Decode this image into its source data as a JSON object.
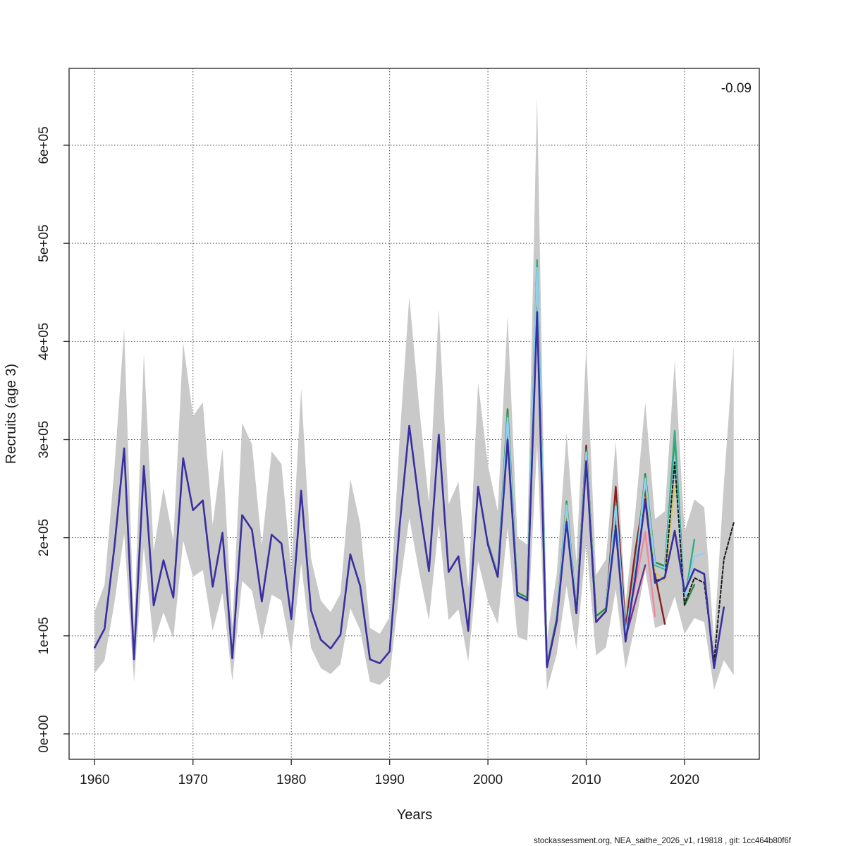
{
  "annotation": {
    "mohn_rho": "-0.09"
  },
  "footer": {
    "text": "stockassessment.org, NEA_saithe_2026_v1, r19818 , git: 1cc464b80f6f"
  },
  "colors": {
    "band": "#c9c9c9",
    "frame": "#333333",
    "grid": "#4d4d4d",
    "text": "#1a1a1a"
  },
  "chart_data": {
    "type": "line",
    "title": "",
    "xlabel": "Years",
    "ylabel": "Recruits (age 3)",
    "x_ticks": [
      1960,
      1970,
      1980,
      1990,
      2000,
      2010,
      2020
    ],
    "y_ticks": [
      {
        "value": 0,
        "label": "0e+00"
      },
      {
        "value": 100,
        "label": "1e+05"
      },
      {
        "value": 200,
        "label": "2e+05"
      },
      {
        "value": 300,
        "label": "3e+05"
      },
      {
        "value": 400,
        "label": "4e+05"
      },
      {
        "value": 500,
        "label": "5e+05"
      },
      {
        "value": 600,
        "label": "6e+05"
      }
    ],
    "y_unit": "thousands (value 100 = 1e+05 recruits)",
    "xlim": [
      1957.4,
      2027.6
    ],
    "ylim": [
      -26,
      678
    ],
    "grid": true,
    "legend": "none",
    "band": {
      "name": "confidence-band",
      "start_year": 1960,
      "upper": [
        125,
        152,
        270,
        413,
        108,
        388,
        186,
        251,
        197,
        399,
        324,
        338,
        213,
        291,
        109,
        317,
        295,
        192,
        288,
        275,
        166,
        352,
        179,
        136,
        124,
        143,
        260,
        214,
        108,
        102,
        119,
        298,
        446,
        334,
        236,
        433,
        234,
        257,
        149,
        358,
        274,
        227,
        426,
        200,
        193,
        650,
        97,
        163,
        307,
        175,
        395,
        162,
        178,
        298,
        133,
        227,
        338,
        219,
        227,
        380,
        206,
        239,
        231,
        95,
        255,
        395
      ],
      "lower": [
        62,
        75,
        133,
        204,
        53,
        191,
        92,
        124,
        97,
        197,
        160,
        167,
        105,
        144,
        54,
        156,
        146,
        95,
        142,
        136,
        82,
        174,
        88,
        67,
        61,
        71,
        128,
        106,
        53,
        50,
        59,
        147,
        220,
        165,
        116,
        214,
        116,
        127,
        74,
        176,
        135,
        112,
        210,
        99,
        95,
        295,
        45,
        81,
        151,
        86,
        195,
        80,
        88,
        147,
        66,
        112,
        167,
        108,
        112,
        140,
        102,
        118,
        114,
        45,
        75,
        60
      ]
    },
    "series": [
      {
        "name": "peel-2016-purple",
        "color": "#7B2D8B",
        "dash": "none",
        "width": 2.4,
        "start_year": 2000,
        "values": [
          193,
          160,
          305,
          141,
          136,
          440,
          68,
          115,
          220,
          123,
          281,
          114,
          125,
          218,
          98,
          135,
          172
        ]
      },
      {
        "name": "peel-2015-magenta",
        "color": "#C12A8A",
        "dash": "none",
        "width": 2.4,
        "start_year": 2000,
        "values": [
          193,
          160,
          308,
          141,
          136,
          445,
          68,
          115,
          222,
          123,
          283,
          114,
          125,
          241,
          104,
          155
        ]
      },
      {
        "name": "peel-2017-pink",
        "color": "#F2879B",
        "dash": "none",
        "width": 2.4,
        "start_year": 2000,
        "values": [
          193,
          160,
          312,
          141,
          136,
          450,
          68,
          115,
          224,
          123,
          286,
          114,
          125,
          238,
          108,
          152,
          206,
          120
        ]
      },
      {
        "name": "peel-2018-darkred",
        "color": "#8B1E1E",
        "dash": "none",
        "width": 2.4,
        "start_year": 2000,
        "values": [
          193,
          160,
          315,
          141,
          136,
          455,
          68,
          115,
          226,
          123,
          294,
          114,
          125,
          252,
          108,
          187,
          250,
          162,
          112
        ]
      },
      {
        "name": "peel-2019-yellow",
        "color": "#D6C75E",
        "dash": "none",
        "width": 2.4,
        "start_year": 2000,
        "values": [
          194,
          160,
          320,
          142,
          136,
          470,
          69,
          116,
          230,
          124,
          288,
          116,
          126,
          228,
          99,
          170,
          258,
          165,
          156,
          253
        ]
      },
      {
        "name": "peel-2020-green",
        "color": "#2E8B3C",
        "dash": "none",
        "width": 2.4,
        "start_year": 2000,
        "values": [
          195,
          162,
          331,
          144,
          139,
          479,
          70,
          118,
          237,
          126,
          290,
          120,
          128,
          230,
          100,
          168,
          265,
          175,
          171,
          303,
          131,
          152
        ]
      },
      {
        "name": "peel-2021-teal",
        "color": "#2FAE84",
        "dash": "none",
        "width": 2.4,
        "start_year": 2000,
        "values": [
          194,
          161,
          325,
          142,
          137,
          483,
          69,
          116,
          235,
          124,
          285,
          115,
          126,
          235,
          102,
          165,
          262,
          172,
          168,
          309,
          135,
          198
        ]
      },
      {
        "name": "peel-2022-skyblue",
        "color": "#8ED0F2",
        "dash": "none",
        "width": 2.4,
        "start_year": 2000,
        "values": [
          194,
          161,
          322,
          142,
          137,
          475,
          69,
          116,
          233,
          124,
          287,
          115,
          126,
          232,
          101,
          166,
          260,
          173,
          169,
          280,
          138,
          181,
          184
        ]
      },
      {
        "name": "forecast-black-dashed",
        "color": "#1a1a1a",
        "dash": "4 3",
        "width": 2,
        "start_year": 2012,
        "values": [
          125,
          212,
          95,
          161,
          240,
          156,
          159,
          277,
          132,
          159,
          154,
          74,
          178,
          215
        ]
      },
      {
        "name": "final-run-blue",
        "color": "#3A2FA0",
        "dash": "none",
        "width": 2.6,
        "start_year": 1960,
        "values": [
          88,
          107,
          190,
          291,
          76,
          273,
          131,
          177,
          139,
          281,
          228,
          238,
          150,
          205,
          77,
          223,
          208,
          135,
          203,
          194,
          117,
          248,
          126,
          96,
          87,
          101,
          183,
          151,
          76,
          72,
          84,
          210,
          314,
          235,
          166,
          305,
          165,
          181,
          105,
          252,
          193,
          160,
          300,
          141,
          136,
          430,
          68,
          115,
          216,
          123,
          278,
          114,
          125,
          210,
          94,
          160,
          238,
          154,
          160,
          207,
          145,
          168,
          163,
          67,
          129
        ]
      }
    ]
  }
}
